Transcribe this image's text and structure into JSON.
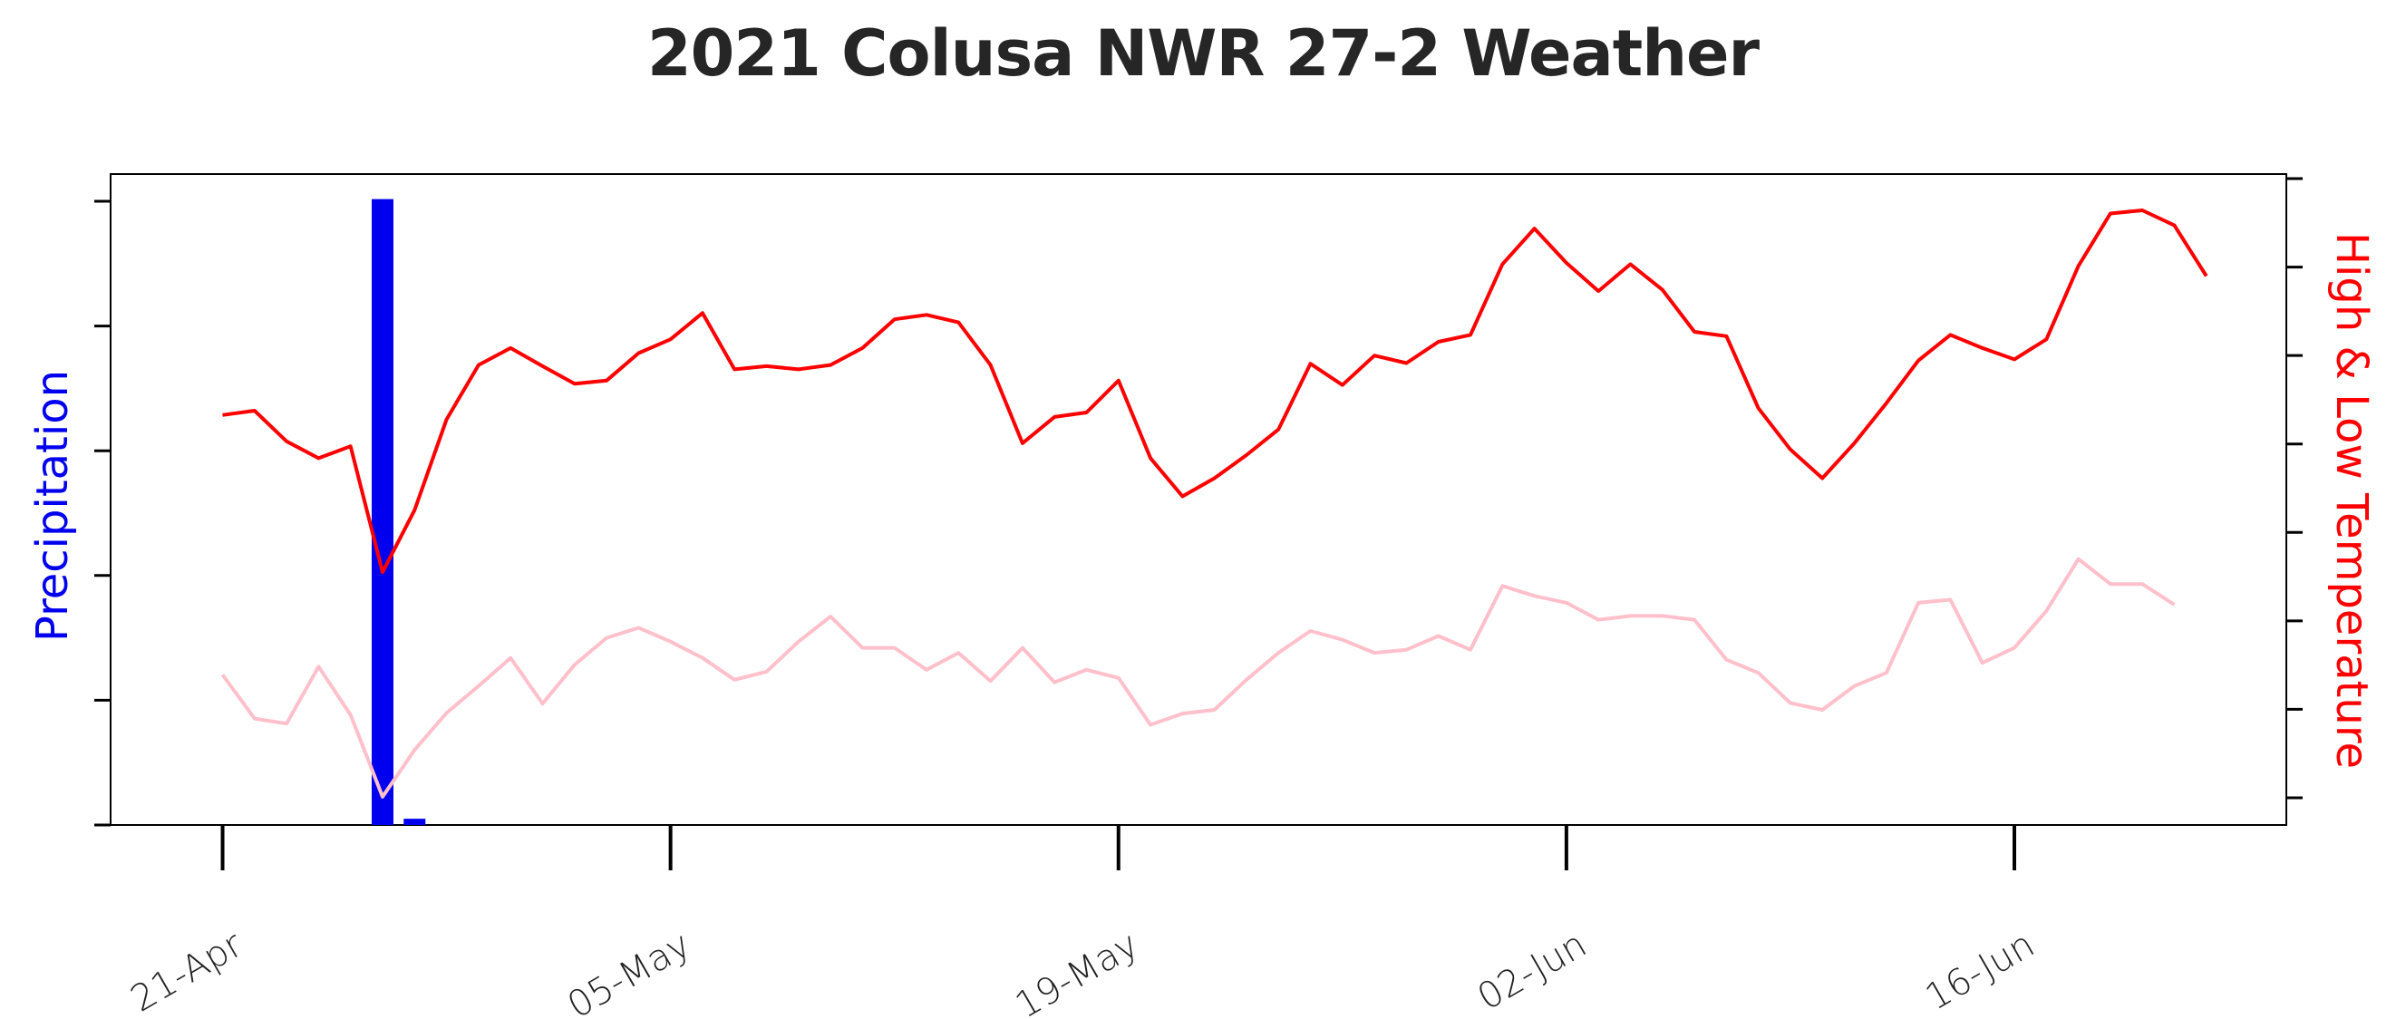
{
  "colors": {
    "precipitation": "#0000ee",
    "high_temp": "#ff0000",
    "low_temp": "#ffc0cb",
    "axis": "#000000",
    "title": "#262626"
  },
  "chart_data": {
    "type": "line",
    "title": "2021 Colusa NWR 27-2 Weather",
    "ylabel_left": "Precipitation",
    "ylabel_right": "High & Low Temperature",
    "x_tick_labels": [
      "21-Apr",
      "05-May",
      "19-May",
      "02-Jun",
      "16-Jun"
    ],
    "x_tick_days": [
      0,
      14,
      28,
      42,
      56
    ],
    "x_range_days": [
      -3.5,
      64.5
    ],
    "y_left_range": [
      0,
      1.04
    ],
    "y_right_range": [
      0,
      1.04
    ],
    "grid": false,
    "legend": "none",
    "left_tick_count": 5,
    "right_tick_count": 8,
    "series": [
      {
        "name": "Precipitation",
        "type": "bar",
        "days": [
          5,
          6
        ],
        "values": [
          1.0,
          0.01
        ]
      },
      {
        "name": "High Temperature",
        "type": "line",
        "values": [
          0.655,
          0.662,
          0.613,
          0.586,
          0.605,
          0.404,
          0.503,
          0.648,
          0.735,
          0.762,
          0.733,
          0.705,
          0.71,
          0.754,
          0.776,
          0.818,
          0.728,
          0.733,
          0.728,
          0.735,
          0.762,
          0.808,
          0.815,
          0.803,
          0.735,
          0.61,
          0.652,
          0.659,
          0.71,
          0.586,
          0.525,
          0.554,
          0.591,
          0.632,
          0.737,
          0.703,
          0.75,
          0.738,
          0.772,
          0.783,
          0.896,
          0.953,
          0.898,
          0.853,
          0.896,
          0.855,
          0.788,
          0.781,
          0.666,
          0.6,
          0.554,
          0.61,
          0.674,
          0.742,
          0.783,
          0.762,
          0.744,
          0.776,
          0.893,
          0.977,
          0.982,
          0.958,
          0.877
        ]
      },
      {
        "name": "Low Temperature",
        "type": "line",
        "values": [
          0.24,
          0.17,
          0.162,
          0.253,
          0.176,
          0.045,
          0.12,
          0.179,
          0.222,
          0.267,
          0.194,
          0.256,
          0.299,
          0.315,
          0.293,
          0.267,
          0.232,
          0.245,
          0.293,
          0.333,
          0.283,
          0.283,
          0.248,
          0.275,
          0.23,
          0.283,
          0.228,
          0.248,
          0.235,
          0.16,
          0.178,
          0.184,
          0.232,
          0.275,
          0.31,
          0.296,
          0.275,
          0.28,
          0.302,
          0.28,
          0.382,
          0.366,
          0.355,
          0.328,
          0.334,
          0.334,
          0.328,
          0.264,
          0.243,
          0.195,
          0.184,
          0.222,
          0.243,
          0.355,
          0.36,
          0.259,
          0.283,
          0.342,
          0.425,
          0.385,
          0.385,
          0.352
        ]
      }
    ]
  }
}
